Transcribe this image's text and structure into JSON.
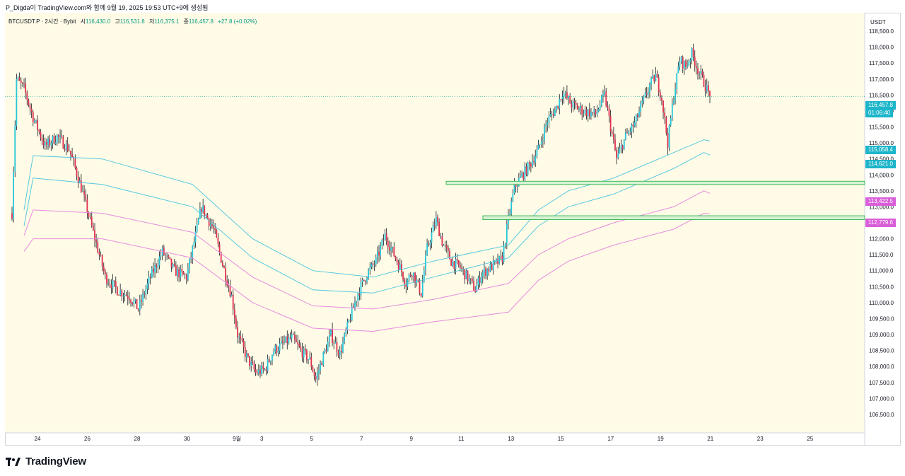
{
  "caption": "P_Digda이 TradingView.com와 함께 9월 19, 2025 19:53 UTC+9에 생성됨",
  "legend": {
    "symbol": "BTCUSDT.P · 2시간 · Bybit",
    "open_label": "시",
    "open": "116,430.0",
    "high_label": "고",
    "high": "116,531.8",
    "low_label": "저",
    "low": "116,375.1",
    "close_label": "종",
    "close": "116,457.8",
    "change": "+27.8 (+0.02%)"
  },
  "currency": "USDT",
  "brand": "TradingView",
  "badges": {
    "last_price": "116,457.8",
    "countdown": "01:06:40",
    "band_upper": "115,058.4",
    "band_upper_2": "114,621.0",
    "band_lower": "113,422.5",
    "band_lower_2": "112,779.6"
  },
  "colors": {
    "background": "#fffbe6",
    "up": "#26c6da",
    "down": "#e0304e",
    "wick": "#131722",
    "cyan_line": "#56c7e0",
    "pink_line": "#e78ae0",
    "zone": "#3dbb5a",
    "last_badge": "#1cb5c9",
    "pink_badge": "#d95ed8"
  },
  "chart_data": {
    "type": "candlestick",
    "title": "BTCUSDT.P · 2시간 · Bybit",
    "ylabel": "USDT",
    "ylim": [
      106100,
      118900
    ],
    "y_ticks": [
      "106,500.0",
      "107,000.0",
      "107,500.0",
      "108,000.0",
      "108,500.0",
      "109,000.0",
      "109,500.0",
      "110,000.0",
      "110,500.0",
      "111,000.0",
      "111,500.0",
      "112,000.0",
      "112,500.0",
      "113,000.0",
      "113,500.0",
      "114,000.0",
      "114,500.0",
      "115,000.0",
      "115,500.0",
      "116,000.0",
      "116,500.0",
      "117,000.0",
      "117,500.0",
      "118,000.0",
      "118,500.0"
    ],
    "x_ticks": [
      "24",
      "26",
      "28",
      "30",
      "9월",
      "3",
      "5",
      "7",
      "9",
      "11",
      "13",
      "15",
      "17",
      "19",
      "21",
      "23",
      "25"
    ],
    "x_range_days": [
      22.6,
      27.0
    ],
    "last_index": 334,
    "anchors": [
      {
        "i": 0,
        "p": 112800
      },
      {
        "i": 3,
        "p": 117000
      },
      {
        "i": 8,
        "p": 116700
      },
      {
        "i": 14,
        "p": 115800
      },
      {
        "i": 22,
        "p": 114900
      },
      {
        "i": 30,
        "p": 115200
      },
      {
        "i": 38,
        "p": 114800
      },
      {
        "i": 46,
        "p": 113600
      },
      {
        "i": 54,
        "p": 112200
      },
      {
        "i": 62,
        "p": 110800
      },
      {
        "i": 70,
        "p": 110400
      },
      {
        "i": 78,
        "p": 110200
      },
      {
        "i": 84,
        "p": 109800
      },
      {
        "i": 92,
        "p": 110800
      },
      {
        "i": 100,
        "p": 111600
      },
      {
        "i": 108,
        "p": 111000
      },
      {
        "i": 116,
        "p": 110800
      },
      {
        "i": 122,
        "p": 112100
      },
      {
        "i": 126,
        "p": 113000
      },
      {
        "i": 134,
        "p": 112300
      },
      {
        "i": 140,
        "p": 111200
      },
      {
        "i": 146,
        "p": 110200
      },
      {
        "i": 150,
        "p": 109000
      },
      {
        "i": 156,
        "p": 108300
      },
      {
        "i": 162,
        "p": 107800
      },
      {
        "i": 168,
        "p": 107900
      },
      {
        "i": 174,
        "p": 108500
      },
      {
        "i": 180,
        "p": 108700
      },
      {
        "i": 186,
        "p": 108900
      },
      {
        "i": 192,
        "p": 108500
      },
      {
        "i": 198,
        "p": 108200
      },
      {
        "i": 202,
        "p": 107600
      },
      {
        "i": 206,
        "p": 108200
      },
      {
        "i": 212,
        "p": 109000
      },
      {
        "i": 218,
        "p": 108400
      },
      {
        "i": 224,
        "p": 109400
      },
      {
        "i": 230,
        "p": 110300
      },
      {
        "i": 236,
        "p": 110900
      },
      {
        "i": 242,
        "p": 111300
      },
      {
        "i": 248,
        "p": 112100
      },
      {
        "i": 252,
        "p": 111700
      },
      {
        "i": 258,
        "p": 111100
      },
      {
        "i": 262,
        "p": 110600
      },
      {
        "i": 266,
        "p": 111000
      },
      {
        "i": 272,
        "p": 110300
      },
      {
        "i": 276,
        "p": 111700
      },
      {
        "i": 282,
        "p": 112600
      },
      {
        "i": 286,
        "p": 111900
      },
      {
        "i": 292,
        "p": 111300
      },
      {
        "i": 298,
        "p": 111100
      },
      {
        "i": 304,
        "p": 110700
      },
      {
        "i": 308,
        "p": 110400
      },
      {
        "i": 312,
        "p": 110900
      },
      {
        "i": 318,
        "p": 111100
      },
      {
        "i": 324,
        "p": 111300
      },
      {
        "i": 334,
        "p": 116457.8
      }
    ],
    "lines": [
      {
        "name": "cyan_upper",
        "color": "#56c7e0",
        "points": [
          [
            22.65,
            113300
          ],
          [
            22.8,
            114600
          ],
          [
            23.2,
            114700
          ],
          [
            23.6,
            114500
          ],
          [
            24.0,
            114200
          ],
          [
            24.5,
            113700
          ],
          [
            25.0,
            113000
          ],
          [
            25.5,
            112100
          ],
          [
            26.0,
            111600
          ],
          [
            26.3,
            111000
          ],
          [
            26.6,
            110800
          ],
          [
            26.9,
            110600
          ],
          [
            27.0,
            110600
          ]
        ]
      },
      {
        "name": "cyan_lower",
        "color": "#56c7e0",
        "points": [
          [
            22.65,
            112800
          ],
          [
            22.8,
            113800
          ],
          [
            23.2,
            113900
          ],
          [
            23.6,
            113700
          ],
          [
            24.0,
            113400
          ],
          [
            24.5,
            112800
          ],
          [
            25.0,
            112000
          ],
          [
            25.5,
            111300
          ],
          [
            26.0,
            110900
          ],
          [
            26.3,
            110400
          ],
          [
            26.6,
            110200
          ],
          [
            26.9,
            110000
          ],
          [
            27.0,
            110000
          ]
        ]
      },
      {
        "name": "pink_upper",
        "color": "#e78ae0",
        "points": [
          [
            22.65,
            112200
          ],
          [
            22.8,
            112900
          ],
          [
            23.2,
            112900
          ],
          [
            23.6,
            112700
          ],
          [
            24.0,
            112400
          ],
          [
            24.5,
            111800
          ],
          [
            25.0,
            111200
          ],
          [
            25.5,
            110600
          ],
          [
            26.0,
            110200
          ],
          [
            26.3,
            110000
          ],
          [
            26.6,
            109800
          ],
          [
            26.9,
            109600
          ],
          [
            27.0,
            109500
          ]
        ]
      },
      {
        "name": "pink_lower",
        "color": "#e78ae0",
        "points": [
          [
            22.65,
            111500
          ],
          [
            22.8,
            112000
          ],
          [
            23.2,
            112100
          ],
          [
            23.6,
            111900
          ],
          [
            24.0,
            111600
          ],
          [
            24.5,
            111100
          ],
          [
            25.0,
            110500
          ],
          [
            25.5,
            110000
          ],
          [
            26.0,
            109700
          ],
          [
            26.3,
            109400
          ],
          [
            26.6,
            109200
          ],
          [
            26.9,
            109100
          ],
          [
            27.0,
            109000
          ]
        ]
      }
    ],
    "zones": [
      {
        "name": "zone_upper",
        "low": 113700,
        "high": 113800
      },
      {
        "name": "zone_lower",
        "low": 112650,
        "high": 112700
      }
    ],
    "last_price": 116457.8
  }
}
